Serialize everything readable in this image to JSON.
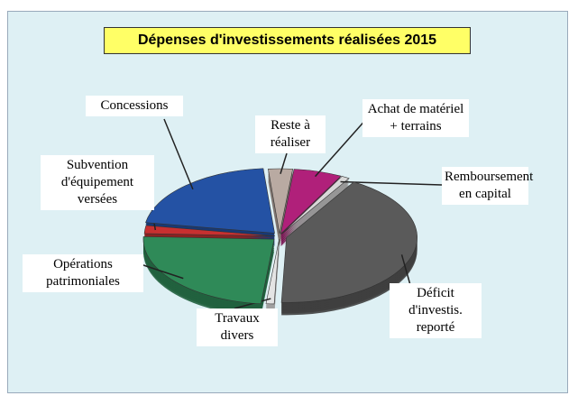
{
  "chart_data": {
    "type": "pie",
    "title": "Dépenses d'investissements réalisées 2015",
    "categories": [
      "Reste à réaliser",
      "Achat de matériel + terrains",
      "Remboursement en capital",
      "Déficit d'investis. reporté",
      "Travaux divers",
      "Opérations patrimoniales",
      "Subvention d'équipement versées",
      "Concessions"
    ],
    "values": [
      3,
      6,
      1,
      42,
      1,
      24,
      2,
      21
    ],
    "colors": [
      "#b9aaa2",
      "#b0207a",
      "#d8d8d8",
      "#5a5a5a",
      "#e4e4e4",
      "#2f8a58",
      "#c83030",
      "#2452a4"
    ]
  }
}
